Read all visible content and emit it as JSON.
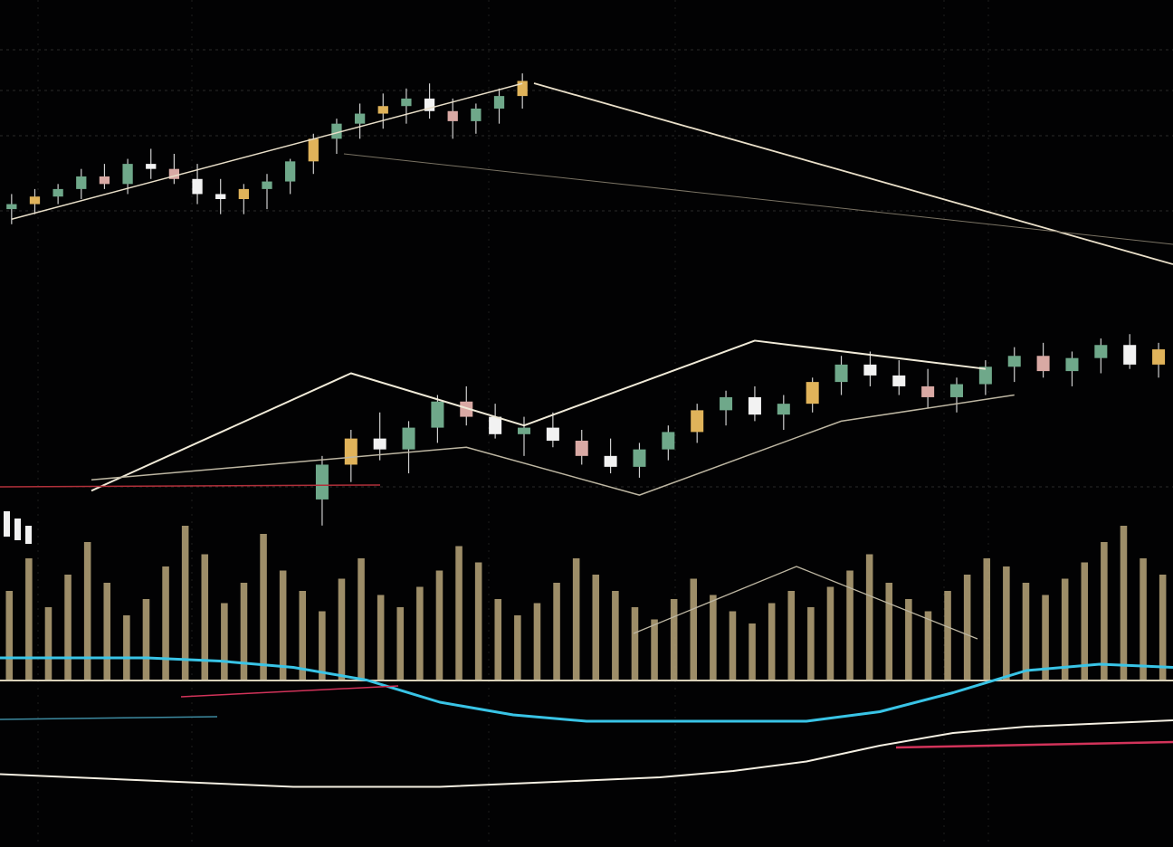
{
  "chart_data": {
    "type": "candlestick",
    "title": "",
    "xlabel": "",
    "ylabel": "",
    "grid": true,
    "legend": "none",
    "colors": {
      "background": "#020203",
      "grid": "#3a3a3a",
      "bull": "#6fa88a",
      "bear": "#f2f2f2",
      "bear_alt": "#d9a9a4",
      "bull_alt": "#e0b35a",
      "trend": "#e9dfc9",
      "volume": "#b9a67a",
      "indicator_cyan": "#39c4e6",
      "indicator_red": "#d2335a",
      "baseline": "#d8d0b8"
    },
    "panels": [
      {
        "name": "upper",
        "candles": [
          {
            "o": 41.0,
            "h": 44.0,
            "l": 38.0,
            "c": 42.0
          },
          {
            "o": 42.0,
            "h": 45.0,
            "l": 40.0,
            "c": 43.5
          },
          {
            "o": 43.5,
            "h": 46.0,
            "l": 42.0,
            "c": 45.0
          },
          {
            "o": 45.0,
            "h": 49.0,
            "l": 43.0,
            "c": 47.5
          },
          {
            "o": 47.5,
            "h": 50.0,
            "l": 45.0,
            "c": 46.0
          },
          {
            "o": 46.0,
            "h": 51.0,
            "l": 44.0,
            "c": 50.0
          },
          {
            "o": 50.0,
            "h": 53.0,
            "l": 47.0,
            "c": 49.0
          },
          {
            "o": 49.0,
            "h": 52.0,
            "l": 46.0,
            "c": 47.0
          },
          {
            "o": 47.0,
            "h": 50.0,
            "l": 42.0,
            "c": 44.0
          },
          {
            "o": 44.0,
            "h": 47.0,
            "l": 40.0,
            "c": 43.0
          },
          {
            "o": 43.0,
            "h": 46.0,
            "l": 40.0,
            "c": 45.0
          },
          {
            "o": 45.0,
            "h": 48.0,
            "l": 41.0,
            "c": 46.5
          },
          {
            "o": 46.5,
            "h": 51.0,
            "l": 44.0,
            "c": 50.5
          },
          {
            "o": 50.5,
            "h": 56.0,
            "l": 48.0,
            "c": 55.0
          },
          {
            "o": 55.0,
            "h": 59.0,
            "l": 52.0,
            "c": 58.0
          },
          {
            "o": 58.0,
            "h": 62.0,
            "l": 55.0,
            "c": 60.0
          },
          {
            "o": 60.0,
            "h": 64.0,
            "l": 57.0,
            "c": 61.5
          },
          {
            "o": 61.5,
            "h": 65.0,
            "l": 58.0,
            "c": 63.0
          },
          {
            "o": 63.0,
            "h": 66.0,
            "l": 59.0,
            "c": 60.5
          },
          {
            "o": 60.5,
            "h": 63.0,
            "l": 55.0,
            "c": 58.5
          },
          {
            "o": 58.5,
            "h": 62.0,
            "l": 56.0,
            "c": 61.0
          },
          {
            "o": 61.0,
            "h": 65.0,
            "l": 58.0,
            "c": 63.5
          },
          {
            "o": 63.5,
            "h": 68.0,
            "l": 61.0,
            "c": 66.5
          }
        ],
        "y_range": [
          34,
          70
        ],
        "trendline": [
          {
            "i": 0,
            "y": 39.0
          },
          {
            "i": 22,
            "y": 66.0
          }
        ]
      },
      {
        "name": "middle",
        "candles": [
          {
            "o": 20.0,
            "h": 30.0,
            "l": 14.0,
            "c": 28.0
          },
          {
            "o": 28.0,
            "h": 36.0,
            "l": 24.0,
            "c": 34.0
          },
          {
            "o": 34.0,
            "h": 40.0,
            "l": 29.0,
            "c": 31.5
          },
          {
            "o": 31.5,
            "h": 38.0,
            "l": 26.0,
            "c": 36.5
          },
          {
            "o": 36.5,
            "h": 44.0,
            "l": 33.0,
            "c": 42.5
          },
          {
            "o": 42.5,
            "h": 46.0,
            "l": 37.0,
            "c": 39.0
          },
          {
            "o": 39.0,
            "h": 42.0,
            "l": 34.0,
            "c": 35.0
          },
          {
            "o": 35.0,
            "h": 39.0,
            "l": 30.0,
            "c": 36.5
          },
          {
            "o": 36.5,
            "h": 40.0,
            "l": 32.0,
            "c": 33.5
          },
          {
            "o": 33.5,
            "h": 36.0,
            "l": 28.0,
            "c": 30.0
          },
          {
            "o": 30.0,
            "h": 34.0,
            "l": 26.0,
            "c": 27.5
          },
          {
            "o": 27.5,
            "h": 33.0,
            "l": 25.0,
            "c": 31.5
          },
          {
            "o": 31.5,
            "h": 37.0,
            "l": 29.0,
            "c": 35.5
          },
          {
            "o": 35.5,
            "h": 42.0,
            "l": 33.0,
            "c": 40.5
          },
          {
            "o": 40.5,
            "h": 45.0,
            "l": 37.0,
            "c": 43.5
          },
          {
            "o": 43.5,
            "h": 46.0,
            "l": 38.0,
            "c": 39.5
          },
          {
            "o": 39.5,
            "h": 44.0,
            "l": 36.0,
            "c": 42.0
          },
          {
            "o": 42.0,
            "h": 48.0,
            "l": 40.0,
            "c": 47.0
          },
          {
            "o": 47.0,
            "h": 53.0,
            "l": 44.0,
            "c": 51.0
          },
          {
            "o": 51.0,
            "h": 54.0,
            "l": 46.0,
            "c": 48.5
          },
          {
            "o": 48.5,
            "h": 52.0,
            "l": 44.0,
            "c": 46.0
          },
          {
            "o": 46.0,
            "h": 50.0,
            "l": 41.0,
            "c": 43.5
          },
          {
            "o": 43.5,
            "h": 48.0,
            "l": 40.0,
            "c": 46.5
          },
          {
            "o": 46.5,
            "h": 52.0,
            "l": 44.0,
            "c": 50.5
          },
          {
            "o": 50.5,
            "h": 55.0,
            "l": 47.0,
            "c": 53.0
          },
          {
            "o": 53.0,
            "h": 56.0,
            "l": 48.0,
            "c": 49.5
          },
          {
            "o": 49.5,
            "h": 54.0,
            "l": 46.0,
            "c": 52.5
          },
          {
            "o": 52.5,
            "h": 57.0,
            "l": 49.0,
            "c": 55.5
          },
          {
            "o": 55.5,
            "h": 58.0,
            "l": 50.0,
            "c": 51.0
          },
          {
            "o": 51.0,
            "h": 56.0,
            "l": 48.0,
            "c": 54.5
          }
        ],
        "y_range": [
          10,
          62
        ],
        "trendlines": [
          [
            {
              "i": -8,
              "y": 22.0
            },
            {
              "i": 1,
              "y": 49.0
            },
            {
              "i": 7,
              "y": 37.0
            },
            {
              "i": 15,
              "y": 56.5
            },
            {
              "i": 23,
              "y": 50.0
            }
          ],
          [
            {
              "i": -8,
              "y": 24.5
            },
            {
              "i": 5,
              "y": 32.0
            },
            {
              "i": 11,
              "y": 21.0
            },
            {
              "i": 18,
              "y": 38.0
            },
            {
              "i": 24,
              "y": 44.0
            }
          ]
        ]
      }
    ],
    "volume": [
      22,
      30,
      18,
      26,
      34,
      24,
      16,
      20,
      28,
      38,
      31,
      19,
      24,
      36,
      27,
      22,
      17,
      25,
      30,
      21,
      18,
      23,
      27,
      33,
      29,
      20,
      16,
      19,
      24,
      30,
      26,
      22,
      18,
      15,
      20,
      25,
      21,
      17,
      14,
      19,
      22,
      18,
      23,
      27,
      31,
      24,
      20,
      17,
      22,
      26,
      30,
      28,
      24,
      21,
      25,
      29,
      34,
      38,
      30,
      26
    ],
    "indicator": {
      "cyan": [
        38,
        38,
        38,
        37,
        35,
        31,
        24,
        20,
        18,
        18,
        18,
        18,
        21,
        27,
        34,
        36,
        35
      ],
      "baseline": [
        15,
        14,
        13,
        12,
        11,
        11,
        11,
        12,
        13,
        14,
        16,
        19,
        24,
        28,
        30,
        31,
        32
      ]
    }
  }
}
